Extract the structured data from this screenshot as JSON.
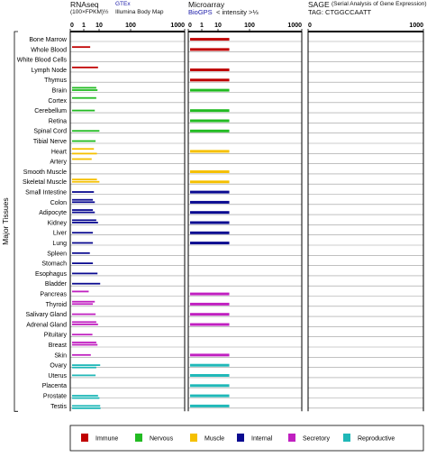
{
  "header": {
    "rnaseq_title": "RNAseq",
    "rnaseq_units": "(100×FPKM)½",
    "gtex_label": "GTEx",
    "illumina_label": "Illumina Body Map",
    "microarray_title": "Microarray",
    "biogps_label": "BioGPS",
    "intensity_label": "< intensity >⅓",
    "sage_title": "SAGE",
    "sage_subtitle": "(Serial Analysis of Gene Expression)",
    "sage_tag": "TAG: CTGGCCAATT"
  },
  "y_axis_label": "Major Tissues",
  "axis_ticks": {
    "rnaseq": [
      "0",
      "1",
      "10",
      "100",
      "1000"
    ],
    "microarray": [
      "0",
      "1",
      "10",
      "100",
      "1000"
    ],
    "sage": [
      "0",
      "1000"
    ]
  },
  "legend": [
    {
      "name": "Immune",
      "color": "#c00000"
    },
    {
      "name": "Nervous",
      "color": "#22bb22"
    },
    {
      "name": "Muscle",
      "color": "#f5c000"
    },
    {
      "name": "Internal",
      "color": "#0a0a90"
    },
    {
      "name": "Secretory",
      "color": "#c020c0"
    },
    {
      "name": "Reproductive",
      "color": "#20b8b8"
    }
  ],
  "chart_data": {
    "type": "bar",
    "title": "",
    "categories": [
      "Bone Marrow",
      "Whole Blood",
      "White Blood Cells",
      "Lymph Node",
      "Thymus",
      "Brain",
      "Cortex",
      "Cerebellum",
      "Retina",
      "Spinal Cord",
      "Tibial Nerve",
      "Heart",
      "Artery",
      "Smooth Muscle",
      "Skeletal Muscle",
      "Small Intestine",
      "Colon",
      "Adipocyte",
      "Kidney",
      "Liver",
      "Lung",
      "Spleen",
      "Stomach",
      "Esophagus",
      "Bladder",
      "Pancreas",
      "Thyroid",
      "Salivary Gland",
      "Adrenal Gland",
      "Pituitary",
      "Breast",
      "Skin",
      "Ovary",
      "Uterus",
      "Placenta",
      "Prostate",
      "Testis"
    ],
    "groups": [
      "Immune",
      "Immune",
      "Immune",
      "Immune",
      "Immune",
      "Nervous",
      "Nervous",
      "Nervous",
      "Nervous",
      "Nervous",
      "Nervous",
      "Muscle",
      "Muscle",
      "Muscle",
      "Muscle",
      "Internal",
      "Internal",
      "Internal",
      "Internal",
      "Internal",
      "Internal",
      "Internal",
      "Internal",
      "Internal",
      "Internal",
      "Secretory",
      "Secretory",
      "Secretory",
      "Secretory",
      "Secretory",
      "Secretory",
      "Secretory",
      "Reproductive",
      "Reproductive",
      "Reproductive",
      "Reproductive",
      "Reproductive"
    ],
    "series": [
      {
        "values": [
          null,
          2,
          null,
          6.5,
          null,
          5,
          5,
          null,
          null,
          null,
          null,
          3.5,
          2.5,
          null,
          5.5,
          null,
          3,
          3,
          5,
          null,
          null,
          null,
          null,
          null,
          null,
          1.6,
          4,
          null,
          5,
          null,
          5,
          null,
          null,
          null,
          null,
          null,
          null
        ]
      },
      {
        "values": [
          null,
          null,
          null,
          null,
          null,
          6,
          null,
          4,
          null,
          8,
          4.5,
          null,
          null,
          null,
          8,
          3.5,
          4,
          4,
          6.5,
          3,
          3,
          1.9,
          3,
          6,
          9,
          null,
          3,
          4.5,
          6.5,
          2.8,
          6,
          2.2,
          9,
          4.5,
          null,
          6.5,
          9
        ]
      },
      {
        "values": [
          null,
          null,
          null,
          null,
          null,
          null,
          null,
          null,
          null,
          null,
          null,
          5.5,
          null,
          null,
          null,
          null,
          null,
          null,
          null,
          null,
          null,
          null,
          null,
          null,
          null,
          null,
          null,
          null,
          null,
          null,
          null,
          null,
          5,
          null,
          null,
          8,
          9.5
        ]
      }
    ],
    "microarray": [
      20,
      20,
      null,
      20,
      20,
      20,
      null,
      20,
      20,
      20,
      null,
      20,
      null,
      20,
      20,
      20,
      20,
      20,
      20,
      20,
      20,
      null,
      null,
      null,
      null,
      20,
      20,
      20,
      20,
      null,
      null,
      20,
      20,
      20,
      20,
      20,
      20
    ],
    "sage": [],
    "xscale": "sqrt-like (labelled 0, 1, 10, 100, 1000)",
    "xlim": [
      0,
      1000
    ],
    "ylabel": "Major Tissues",
    "grid": true,
    "legend_position": "bottom"
  }
}
